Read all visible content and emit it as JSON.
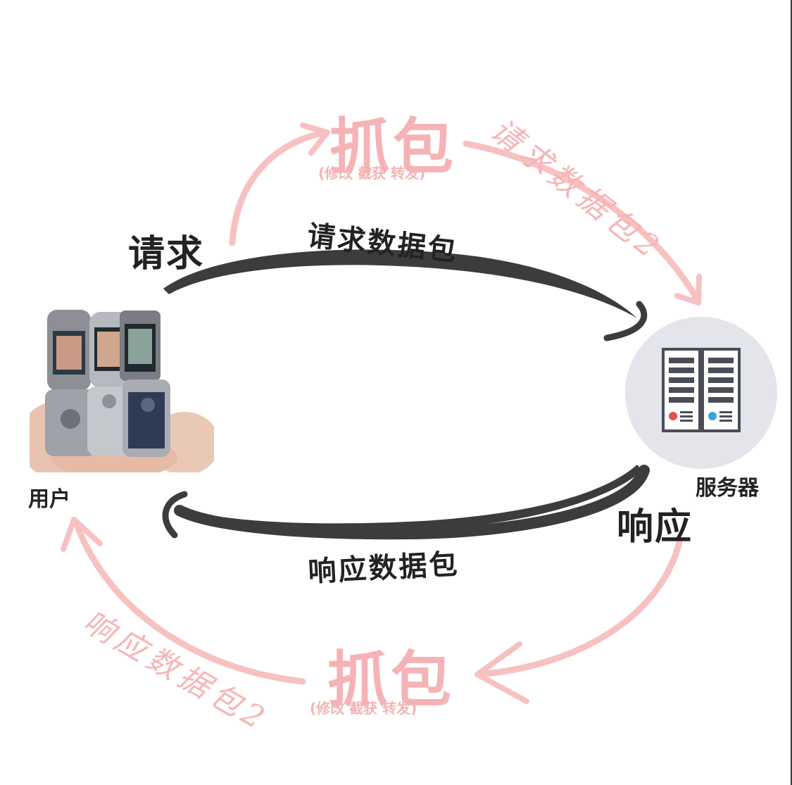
{
  "labels": {
    "request": "请求",
    "request_packet": "请求数据包",
    "response": "响应",
    "response_packet": "响应数据包",
    "user": "用户",
    "server": "服务器",
    "capture_top": "抓包",
    "capture_top_sub": "(修改 截获 转发)",
    "capture_bottom": "抓包",
    "capture_bottom_sub": "(修改 截获 转发)",
    "hand_request": "请求数据包2",
    "hand_response": "响应数据包2"
  },
  "colors": {
    "arrow_dark": "#3c3c3c",
    "arrow_pink": "#f7c1c2",
    "server_bg": "#e4e5ea",
    "server_body": "#4a4c57"
  },
  "icons": {
    "user_image": "flip-phones-photo",
    "server_image": "server-rack-icon"
  }
}
